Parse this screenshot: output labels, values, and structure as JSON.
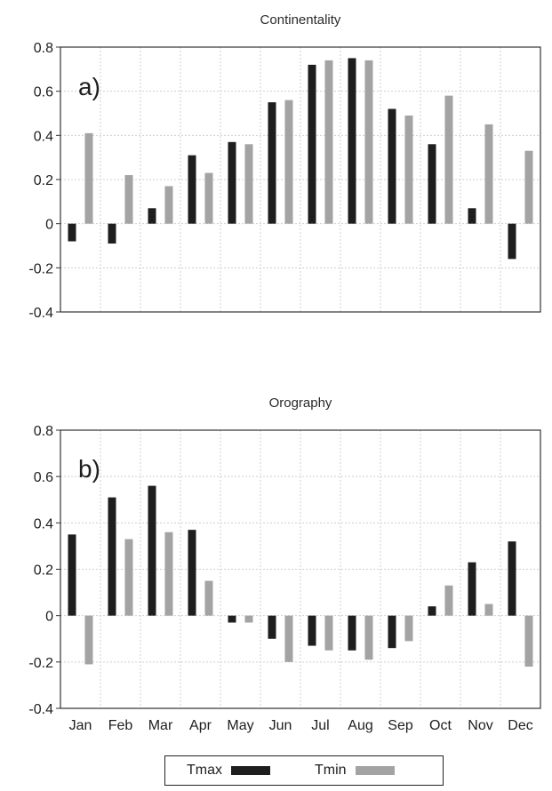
{
  "chart_data": [
    {
      "type": "bar",
      "title": "Continentality",
      "panel_label": "a)",
      "categories": [
        "Jan",
        "Feb",
        "Mar",
        "Apr",
        "May",
        "Jun",
        "Jul",
        "Aug",
        "Sep",
        "Oct",
        "Nov",
        "Dec"
      ],
      "series": [
        {
          "name": "Tmax",
          "color": "#1e1e1e",
          "values": [
            -0.08,
            -0.09,
            0.07,
            0.31,
            0.37,
            0.55,
            0.72,
            0.75,
            0.52,
            0.36,
            0.07,
            -0.16
          ]
        },
        {
          "name": "Tmin",
          "color": "#a3a3a3",
          "values": [
            0.41,
            0.22,
            0.17,
            0.23,
            0.36,
            0.56,
            0.74,
            0.74,
            0.49,
            0.58,
            0.45,
            0.33
          ]
        }
      ],
      "ylim": [
        -0.4,
        0.8
      ],
      "yticks": [
        "-0.4",
        "-0.2",
        "0",
        "0.2",
        "0.4",
        "0.6",
        "0.8"
      ],
      "show_xtick_labels": false,
      "grid": true
    },
    {
      "type": "bar",
      "title": "Orography",
      "panel_label": "b)",
      "categories": [
        "Jan",
        "Feb",
        "Mar",
        "Apr",
        "May",
        "Jun",
        "Jul",
        "Aug",
        "Sep",
        "Oct",
        "Nov",
        "Dec"
      ],
      "series": [
        {
          "name": "Tmax",
          "color": "#1e1e1e",
          "values": [
            0.35,
            0.51,
            0.56,
            0.37,
            -0.03,
            -0.1,
            -0.13,
            -0.15,
            -0.14,
            0.04,
            0.23,
            0.32
          ]
        },
        {
          "name": "Tmin",
          "color": "#a3a3a3",
          "values": [
            -0.21,
            0.33,
            0.36,
            0.15,
            -0.03,
            -0.2,
            -0.15,
            -0.19,
            -0.11,
            0.13,
            0.05,
            -0.22
          ]
        }
      ],
      "ylim": [
        -0.4,
        0.8
      ],
      "yticks": [
        "-0.4",
        "-0.2",
        "0",
        "0.2",
        "0.4",
        "0.6",
        "0.8"
      ],
      "show_xtick_labels": true,
      "grid": true
    }
  ],
  "legend": {
    "placement": "bottom-center",
    "items": [
      {
        "label": "Tmax",
        "color": "#1e1e1e"
      },
      {
        "label": "Tmin",
        "color": "#a3a3a3"
      }
    ]
  }
}
